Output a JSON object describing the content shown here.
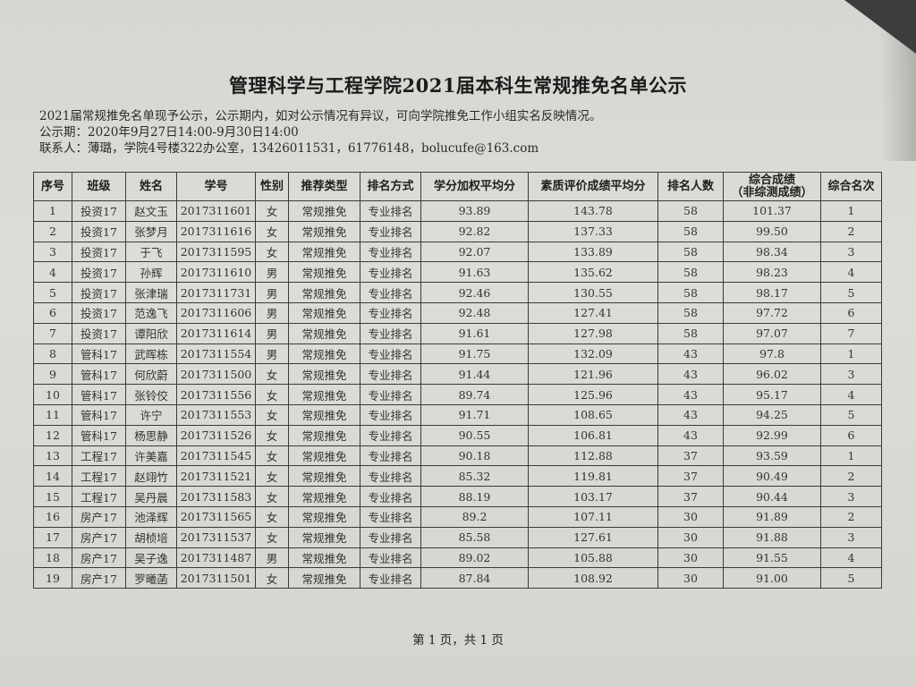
{
  "title": "管理科学与工程学院2021届本科生常规推免名单公示",
  "notes": [
    "2021届常规推免名单现予公示，公示期内，如对公示情况有异议，可向学院推免工作小组实名反映情况。",
    "公示期：2020年9月27日14:00-9月30日14:00",
    "联系人：薄璐，学院4号楼322办公室，13426011531，61776148，bolucufe@163.com"
  ],
  "table": {
    "headers": [
      "序号",
      "班级",
      "姓名",
      "学号",
      "性别",
      "推荐类型",
      "排名方式",
      "学分加权平均分",
      "素质评价成绩平均分",
      "排名人数",
      "综合成绩\n（非综测成绩）",
      "综合名次"
    ],
    "rows": [
      [
        "1",
        "投资17",
        "赵文玉",
        "2017311601",
        "女",
        "常规推免",
        "专业排名",
        "93.89",
        "143.78",
        "58",
        "101.37",
        "1"
      ],
      [
        "2",
        "投资17",
        "张梦月",
        "2017311616",
        "女",
        "常规推免",
        "专业排名",
        "92.82",
        "137.33",
        "58",
        "99.50",
        "2"
      ],
      [
        "3",
        "投资17",
        "于飞",
        "2017311595",
        "女",
        "常规推免",
        "专业排名",
        "92.07",
        "133.89",
        "58",
        "98.34",
        "3"
      ],
      [
        "4",
        "投资17",
        "孙辉",
        "2017311610",
        "男",
        "常规推免",
        "专业排名",
        "91.63",
        "135.62",
        "58",
        "98.23",
        "4"
      ],
      [
        "5",
        "投资17",
        "张津瑞",
        "2017311731",
        "男",
        "常规推免",
        "专业排名",
        "92.46",
        "130.55",
        "58",
        "98.17",
        "5"
      ],
      [
        "6",
        "投资17",
        "范逸飞",
        "2017311606",
        "男",
        "常规推免",
        "专业排名",
        "92.48",
        "127.41",
        "58",
        "97.72",
        "6"
      ],
      [
        "7",
        "投资17",
        "谭阳欣",
        "2017311614",
        "男",
        "常规推免",
        "专业排名",
        "91.61",
        "127.98",
        "58",
        "97.07",
        "7"
      ],
      [
        "8",
        "管科17",
        "武晖栋",
        "2017311554",
        "男",
        "常规推免",
        "专业排名",
        "91.75",
        "132.09",
        "43",
        "97.8",
        "1"
      ],
      [
        "9",
        "管科17",
        "何欣蔚",
        "2017311500",
        "女",
        "常规推免",
        "专业排名",
        "91.44",
        "121.96",
        "43",
        "96.02",
        "3"
      ],
      [
        "10",
        "管科17",
        "张铃佼",
        "2017311556",
        "女",
        "常规推免",
        "专业排名",
        "89.74",
        "125.96",
        "43",
        "95.17",
        "4"
      ],
      [
        "11",
        "管科17",
        "许宁",
        "2017311553",
        "女",
        "常规推免",
        "专业排名",
        "91.71",
        "108.65",
        "43",
        "94.25",
        "5"
      ],
      [
        "12",
        "管科17",
        "杨思静",
        "2017311526",
        "女",
        "常规推免",
        "专业排名",
        "90.55",
        "106.81",
        "43",
        "92.99",
        "6"
      ],
      [
        "13",
        "工程17",
        "许美嘉",
        "2017311545",
        "女",
        "常规推免",
        "专业排名",
        "90.18",
        "112.88",
        "37",
        "93.59",
        "1"
      ],
      [
        "14",
        "工程17",
        "赵翊竹",
        "2017311521",
        "女",
        "常规推免",
        "专业排名",
        "85.32",
        "119.81",
        "37",
        "90.49",
        "2"
      ],
      [
        "15",
        "工程17",
        "吴丹晨",
        "2017311583",
        "女",
        "常规推免",
        "专业排名",
        "88.19",
        "103.17",
        "37",
        "90.44",
        "3"
      ],
      [
        "16",
        "房产17",
        "池泽辉",
        "2017311565",
        "女",
        "常规推免",
        "专业排名",
        "89.2",
        "107.11",
        "30",
        "91.89",
        "2"
      ],
      [
        "17",
        "房产17",
        "胡桢培",
        "2017311537",
        "女",
        "常规推免",
        "专业排名",
        "85.58",
        "127.61",
        "30",
        "91.88",
        "3"
      ],
      [
        "18",
        "房产17",
        "吴子逸",
        "2017311487",
        "男",
        "常规推免",
        "专业排名",
        "89.02",
        "105.88",
        "30",
        "91.55",
        "4"
      ],
      [
        "19",
        "房产17",
        "罗曦菡",
        "2017311501",
        "女",
        "常规推免",
        "专业排名",
        "87.84",
        "108.92",
        "30",
        "91.00",
        "5"
      ]
    ]
  },
  "footer": "第 1 页，共 1 页"
}
